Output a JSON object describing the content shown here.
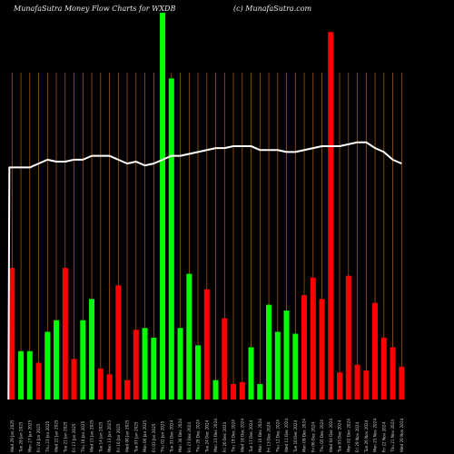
{
  "header": {
    "title": "MunafaSutra  Money Flow  Charts for WXDB",
    "site": "(c) MunafaSutra.com"
  },
  "chart_data": {
    "type": "bar",
    "title": "MunafaSutra  Money Flow  Charts for WXDB",
    "ylim": [
      0,
      100
    ],
    "grid": "vertical",
    "categories": [
      "Wed 29 Jan 2025",
      "Tue 28 Jan 2025",
      "Mon 27 Jan 2025",
      "Fri 24 Jan 2025",
      "Thu 23 Jan 2025",
      "Wed 22 Jan 2025",
      "Tue 21 Jan 2025",
      "Fri 17 Jan 2025",
      "Thu 16 Jan 2025",
      "Wed 15 Jan 2025",
      "Tue 14 Jan 2025",
      "Mon 13 Jan 2025",
      "Fri 10 Jan 2025",
      "Wed 08 Jan 2025",
      "Tue 07 Jan 2025",
      "Mon 06 Jan 2025",
      "Fri 03 Jan 2025",
      "Thu 02 Jan 2025",
      "Tue 31 Dec 2024",
      "Mon 30 Dec 2024",
      "Fri 27 Dec 2024",
      "Thu 26 Dec 2024",
      "Tue 24 Dec 2024",
      "Mon 23 Dec 2024",
      "Fri 20 Dec 2024",
      "Thu 19 Dec 2024",
      "Wed 18 Dec 2024",
      "Tue 17 Dec 2024",
      "Mon 16 Dec 2024",
      "Fri 13 Dec 2024",
      "Thu 12 Dec 2024",
      "Wed 11 Dec 2024",
      "Tue 10 Dec 2024",
      "Mon 09 Dec 2024",
      "Fri 06 Dec 2024",
      "Thu 05 Dec 2024",
      "Wed 04 Dec 2024",
      "Tue 03 Dec 2024",
      "Mon 02 Dec 2024",
      "Fri 29 Nov 2024",
      "Tue 26 Nov 2024",
      "Mon 25 Nov 2024",
      "Fri 22 Nov 2024",
      "Thu 21 Nov 2024",
      "Wed 20 Nov 2024"
    ],
    "series": [
      {
        "values": [
          34,
          12.5,
          12.5,
          9.5,
          17.5,
          20.5,
          34,
          10.5,
          20.5,
          26,
          8,
          6.5,
          29.5,
          5,
          18,
          18.5,
          16,
          100,
          83,
          18.5,
          32.5,
          14,
          28.5,
          5,
          21,
          4,
          4.5,
          13.5,
          4,
          24.5,
          17.5,
          23,
          17,
          27,
          31.5,
          26,
          95,
          7,
          32,
          9,
          7.5,
          25,
          16,
          13.5,
          8.5
        ],
        "direction": [
          "down",
          "up",
          "up",
          "down",
          "up",
          "up",
          "down",
          "down",
          "up",
          "up",
          "down",
          "down",
          "down",
          "down",
          "down",
          "up",
          "up",
          "up",
          "up",
          "up",
          "up",
          "up",
          "down",
          "up",
          "down",
          "down",
          "down",
          "up",
          "up",
          "up",
          "up",
          "up",
          "up",
          "down",
          "down",
          "down",
          "down",
          "down",
          "down",
          "down",
          "down",
          "down",
          "down",
          "down",
          "down"
        ]
      },
      {
        "values": [
          60,
          60,
          60,
          61,
          62,
          61.5,
          61.5,
          62,
          62,
          63,
          63,
          63,
          62,
          61,
          61.5,
          60.5,
          61,
          62,
          63,
          63,
          63.5,
          64,
          64.5,
          65,
          65,
          65.5,
          65.5,
          65.5,
          64.5,
          64.5,
          64.5,
          64,
          64,
          64.5,
          65,
          65.5,
          65.5,
          65.5,
          66,
          66.5,
          66.5,
          65,
          64,
          62,
          61
        ]
      }
    ],
    "bar_order": "reversed",
    "colors": {
      "up": "#00ff00",
      "down": "#ff0000",
      "line": "#ffffff",
      "grid": "#b8620c",
      "background": "#000000"
    }
  }
}
